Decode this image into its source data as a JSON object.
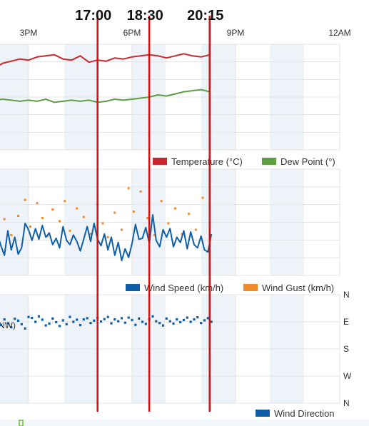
{
  "chart_data": [
    {
      "type": "line",
      "x_axis_labels": [
        "3PM",
        "6PM",
        "9PM",
        "12AM"
      ],
      "x_unit": "hour",
      "x_range": [
        13.0,
        24.0
      ],
      "ylim": [
        0,
        10
      ],
      "grid": true,
      "legend_position": "bottom-right",
      "series": [
        {
          "name": "Temperature (°C)",
          "color": "#c8282e",
          "x": [
            13.0,
            13.25,
            13.5,
            13.75,
            14.0,
            14.25,
            14.5,
            14.75,
            15.0,
            15.25,
            15.5,
            15.75,
            16.0,
            16.25,
            16.5,
            16.75,
            17.0,
            17.25,
            17.5,
            17.75,
            18.0,
            18.25,
            18.5,
            18.75,
            19.0,
            19.25,
            19.5,
            19.75,
            20.0,
            20.25
          ],
          "y": [
            9.0,
            8.0,
            7.5,
            7.5,
            7.7,
            8.2,
            8.4,
            8.6,
            8.5,
            8.8,
            8.9,
            9.0,
            8.6,
            8.5,
            8.9,
            8.3,
            8.5,
            8.4,
            8.7,
            8.6,
            8.8,
            8.9,
            9.0,
            8.9,
            8.7,
            8.9,
            9.1,
            8.9,
            8.8,
            9.0
          ]
        },
        {
          "name": "Dew Point (°)",
          "color": "#5d9e43",
          "x": [
            13.0,
            13.25,
            13.5,
            13.75,
            14.0,
            14.25,
            14.5,
            14.75,
            15.0,
            15.25,
            15.5,
            15.75,
            16.0,
            16.25,
            16.5,
            16.75,
            17.0,
            17.25,
            17.5,
            17.75,
            18.0,
            18.25,
            18.5,
            18.75,
            19.0,
            19.25,
            19.5,
            19.75,
            20.0,
            20.25
          ],
          "y": [
            4.4,
            4.6,
            4.7,
            4.6,
            4.7,
            4.8,
            4.7,
            4.6,
            4.7,
            4.6,
            4.8,
            4.5,
            4.6,
            4.7,
            4.6,
            4.7,
            4.5,
            4.6,
            4.8,
            4.7,
            4.8,
            4.9,
            5.0,
            5.2,
            5.1,
            5.3,
            5.5,
            5.6,
            5.7,
            5.5
          ]
        }
      ]
    },
    {
      "type": "line",
      "x_unit": "hour",
      "x_range": [
        13.0,
        24.0
      ],
      "ylim": [
        0,
        10
      ],
      "grid": true,
      "legend_position": "bottom-right",
      "series": [
        {
          "name": "Wind Speed (km/h)",
          "color": "#0e5fa8",
          "style": "line",
          "x": [
            13.0,
            13.1,
            13.2,
            13.3,
            13.4,
            13.5,
            13.6,
            13.7,
            13.8,
            13.9,
            14.0,
            14.1,
            14.2,
            14.3,
            14.4,
            14.5,
            14.6,
            14.7,
            14.8,
            14.9,
            15.0,
            15.1,
            15.2,
            15.3,
            15.4,
            15.5,
            15.6,
            15.7,
            15.8,
            15.9,
            16.0,
            16.1,
            16.2,
            16.3,
            16.4,
            16.5,
            16.6,
            16.7,
            16.8,
            16.9,
            17.0,
            17.1,
            17.2,
            17.3,
            17.4,
            17.5,
            17.6,
            17.7,
            17.8,
            17.9,
            18.0,
            18.1,
            18.2,
            18.3,
            18.4,
            18.5,
            18.6,
            18.7,
            18.8,
            18.9,
            19.0,
            19.1,
            19.2,
            19.3,
            19.4,
            19.5,
            19.6,
            19.7,
            19.8,
            19.9,
            20.0,
            20.1,
            20.2,
            20.3
          ],
          "y": [
            1.8,
            2.2,
            3.8,
            2.4,
            1.7,
            2.7,
            4.0,
            2.9,
            3.7,
            2.6,
            1.4,
            3.8,
            2.8,
            1.9,
            4.2,
            2.4,
            3.6,
            2.0,
            2.6,
            4.9,
            4.3,
            3.3,
            4.4,
            3.4,
            4.7,
            3.6,
            4.0,
            2.9,
            3.5,
            2.6,
            4.6,
            3.3,
            2.9,
            3.8,
            3.2,
            2.3,
            3.4,
            4.6,
            3.2,
            4.9,
            3.4,
            2.8,
            3.9,
            2.4,
            3.6,
            1.9,
            3.1,
            1.4,
            2.5,
            1.7,
            3.0,
            4.8,
            3.4,
            3.5,
            4.5,
            3.0,
            5.7,
            3.3,
            2.7,
            4.3,
            3.6,
            4.4,
            2.7,
            3.6,
            3.1,
            4.2,
            2.5,
            4.1,
            2.9,
            2.6,
            3.7,
            2.4,
            2.2,
            3.9
          ]
        },
        {
          "name": "Wind Gust (km/h)",
          "color": "#f08a2b",
          "style": "markers",
          "x": [
            13.1,
            13.25,
            13.45,
            13.6,
            13.8,
            13.95,
            14.1,
            14.3,
            14.5,
            14.7,
            14.9,
            15.05,
            15.25,
            15.4,
            15.55,
            15.7,
            15.9,
            16.05,
            16.2,
            16.4,
            16.6,
            16.8,
            17.0,
            17.15,
            17.3,
            17.5,
            17.7,
            17.9,
            18.05,
            18.25,
            18.45,
            18.65,
            18.85,
            19.05,
            19.25,
            19.45,
            19.65,
            19.85,
            20.05,
            20.25
          ],
          "y": [
            5.5,
            7.3,
            4.1,
            6.1,
            4.8,
            3.0,
            6.6,
            5.3,
            3.8,
            5.6,
            7.1,
            4.6,
            6.8,
            5.4,
            3.7,
            6.2,
            5.1,
            7.0,
            4.2,
            6.3,
            5.5,
            3.9,
            6.7,
            4.9,
            3.6,
            5.9,
            4.3,
            8.2,
            6.0,
            7.9,
            5.4,
            3.8,
            7.0,
            4.9,
            6.3,
            3.9,
            5.8,
            4.3,
            7.3,
            2.3
          ]
        }
      ]
    },
    {
      "type": "scatter",
      "x_unit": "hour",
      "x_range": [
        13.0,
        24.0
      ],
      "y_axis_labels": [
        "N",
        "W",
        "S",
        "E",
        "N"
      ],
      "y_unit": "degrees",
      "ylim": [
        0,
        360
      ],
      "grid": true,
      "legend_position": "bottom-right",
      "partial_label": "NW)",
      "series": [
        {
          "name": "Wind Direction",
          "color": "#0e5fa8",
          "x": [
            13.0,
            13.1,
            13.2,
            13.3,
            13.4,
            13.5,
            13.6,
            13.7,
            13.8,
            13.9,
            14.0,
            14.1,
            14.2,
            14.3,
            14.4,
            14.5,
            14.6,
            14.7,
            14.8,
            14.9,
            15.0,
            15.1,
            15.2,
            15.3,
            15.4,
            15.5,
            15.6,
            15.7,
            15.8,
            15.9,
            16.0,
            16.1,
            16.2,
            16.3,
            16.4,
            16.5,
            16.6,
            16.7,
            16.8,
            16.9,
            17.0,
            17.1,
            17.2,
            17.3,
            17.4,
            17.5,
            17.6,
            17.7,
            17.8,
            17.9,
            18.0,
            18.1,
            18.2,
            18.3,
            18.4,
            18.5,
            18.6,
            18.7,
            18.8,
            18.9,
            19.0,
            19.1,
            19.2,
            19.3,
            19.4,
            19.5,
            19.6,
            19.7,
            19.8,
            19.9,
            20.0,
            20.1,
            20.2,
            20.3
          ],
          "y": [
            286,
            275,
            268,
            282,
            271,
            263,
            276,
            284,
            279,
            266,
            272,
            281,
            259,
            278,
            265,
            252,
            280,
            274,
            262,
            248,
            286,
            283,
            270,
            288,
            277,
            258,
            264,
            281,
            269,
            256,
            275,
            262,
            286,
            270,
            277,
            259,
            278,
            282,
            266,
            274,
            283,
            271,
            279,
            286,
            265,
            278,
            272,
            282,
            267,
            284,
            276,
            260,
            281,
            270,
            263,
            278,
            288,
            272,
            266,
            258,
            281,
            272,
            264,
            278,
            269,
            276,
            284,
            270,
            278,
            285,
            266,
            275,
            282,
            270
          ]
        }
      ]
    }
  ],
  "time_markers": [
    {
      "label": "17:00",
      "hour": 17.0
    },
    {
      "label": "18:30",
      "hour": 18.5
    },
    {
      "label": "20:15",
      "hour": 20.25
    }
  ],
  "colors": {
    "marker_line": "#cc1111",
    "shade_band": "#eef3f9",
    "grid": "#e3e3e3"
  }
}
